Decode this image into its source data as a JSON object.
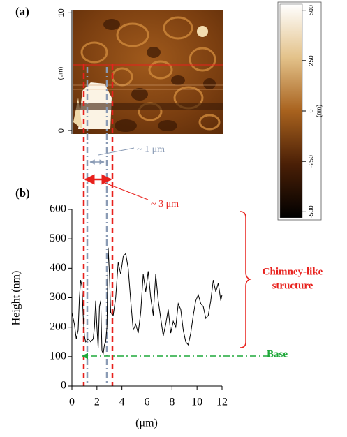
{
  "image_panel": {
    "label": "(a)",
    "axis_label": "(μm)",
    "ylim": [
      0,
      10.2
    ],
    "yticks": [
      0,
      10
    ]
  },
  "colorbar": {
    "label": "(nm)",
    "lim": [
      -530,
      530
    ],
    "ticks": [
      -500,
      -250,
      0,
      250,
      500
    ]
  },
  "chart_data": {
    "type": "line",
    "panel_label": "(b)",
    "xlabel": "(μm)",
    "ylabel": "Height (nm)",
    "color": "#000000",
    "x": [
      0,
      0.2,
      0.35,
      0.5,
      0.6,
      0.7,
      0.8,
      0.9,
      1.0,
      1.1,
      1.3,
      1.5,
      1.7,
      1.8,
      1.9,
      2.0,
      2.1,
      2.2,
      2.3,
      2.4,
      2.5,
      2.6,
      2.7,
      2.8,
      2.9,
      3.0,
      3.1,
      3.3,
      3.5,
      3.7,
      3.9,
      4.1,
      4.3,
      4.5,
      4.7,
      4.9,
      5.1,
      5.3,
      5.5,
      5.7,
      5.9,
      6.1,
      6.3,
      6.5,
      6.7,
      6.9,
      7.1,
      7.3,
      7.5,
      7.7,
      7.9,
      8.1,
      8.3,
      8.5,
      8.7,
      8.9,
      9.1,
      9.3,
      9.5,
      9.7,
      9.9,
      10.1,
      10.3,
      10.5,
      10.7,
      10.9,
      11.1,
      11.3,
      11.5,
      11.7,
      11.9,
      12.0
    ],
    "values": [
      250,
      210,
      160,
      190,
      300,
      360,
      340,
      240,
      170,
      150,
      160,
      150,
      160,
      200,
      290,
      200,
      130,
      270,
      290,
      120,
      110,
      140,
      150,
      200,
      470,
      380,
      250,
      240,
      300,
      420,
      380,
      440,
      450,
      400,
      290,
      190,
      210,
      180,
      250,
      380,
      320,
      390,
      300,
      240,
      380,
      290,
      230,
      170,
      210,
      260,
      180,
      220,
      200,
      280,
      260,
      190,
      150,
      140,
      180,
      240,
      290,
      310,
      280,
      270,
      230,
      240,
      290,
      360,
      320,
      350,
      290,
      310
    ],
    "xlim": [
      0,
      12
    ],
    "ylim": [
      0,
      600
    ],
    "xticks": [
      0,
      2,
      4,
      6,
      8,
      10,
      12
    ],
    "yticks": [
      0,
      100,
      200,
      300,
      400,
      500,
      600
    ],
    "annotations": {
      "inner_width": "~ 1 μm",
      "outer_width": "~ 3 μm",
      "structure_line1": "Chimney-like",
      "structure_line2": "structure",
      "base": "Base"
    }
  }
}
